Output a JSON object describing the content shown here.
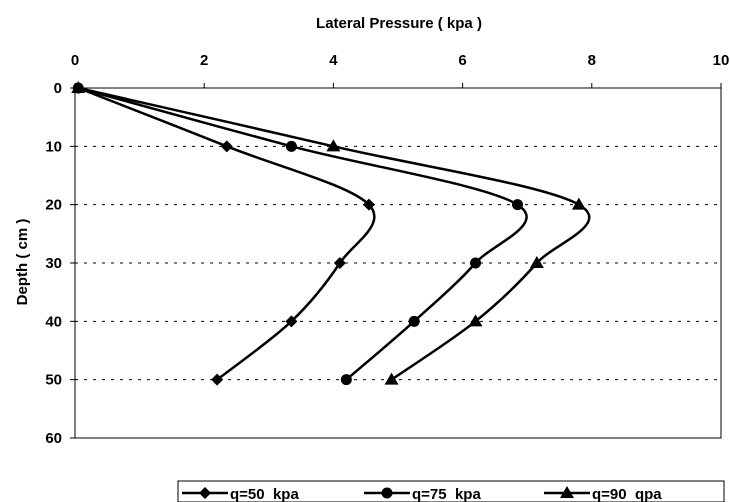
{
  "chart_data": {
    "type": "line",
    "title": "",
    "xlabel": "Lateral Pressure ( kpa )",
    "ylabel": "Depth ( cm )",
    "x_axis_position": "top",
    "y_axis_inverted": true,
    "xlim": [
      0,
      10
    ],
    "ylim": [
      0,
      60
    ],
    "xticks": [
      "0",
      "2",
      "4",
      "6",
      "8",
      "10"
    ],
    "yticks": [
      "0",
      "10",
      "20",
      "30",
      "40",
      "50",
      "60"
    ],
    "grid": "horizontal dashed",
    "legend_position": "bottom",
    "series": [
      {
        "name": "q=50  kpa",
        "marker": "diamond",
        "color": "#000000",
        "points": [
          {
            "x": 0.05,
            "y": 0
          },
          {
            "x": 2.35,
            "y": 10
          },
          {
            "x": 4.55,
            "y": 20
          },
          {
            "x": 4.1,
            "y": 30
          },
          {
            "x": 3.35,
            "y": 40
          },
          {
            "x": 2.2,
            "y": 50
          }
        ]
      },
      {
        "name": "q=75  kpa",
        "marker": "circle",
        "color": "#000000",
        "points": [
          {
            "x": 0.05,
            "y": 0
          },
          {
            "x": 3.35,
            "y": 10
          },
          {
            "x": 6.85,
            "y": 20
          },
          {
            "x": 6.2,
            "y": 30
          },
          {
            "x": 5.25,
            "y": 40
          },
          {
            "x": 4.2,
            "y": 50
          }
        ]
      },
      {
        "name": "q=90  qpa",
        "marker": "triangle",
        "color": "#000000",
        "points": [
          {
            "x": 0.05,
            "y": 0
          },
          {
            "x": 4.0,
            "y": 10
          },
          {
            "x": 7.8,
            "y": 20
          },
          {
            "x": 7.15,
            "y": 30
          },
          {
            "x": 6.2,
            "y": 40
          },
          {
            "x": 4.9,
            "y": 50
          }
        ]
      }
    ]
  }
}
